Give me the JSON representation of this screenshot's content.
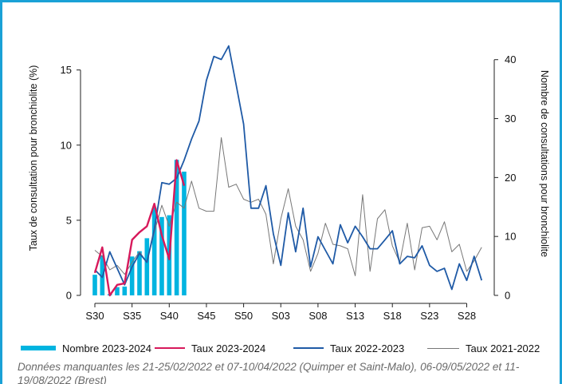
{
  "colors": {
    "frame": "#1aa1d6",
    "bars": "#00b4e0",
    "taux_2023_2024": "#d7195b",
    "taux_2022_2023": "#1f5aa6",
    "taux_2021_2022": "#777777",
    "axis": "#222222"
  },
  "chart_data": {
    "type": "bar",
    "ylabel_left": "Taux de consultation pour bronchiolite (%)",
    "ylabel_right": "Nombre de consultations pour bronchiolite",
    "ylim_left": [
      0,
      17
    ],
    "ylim_right": [
      0,
      43.35
    ],
    "yticks_left": [
      0,
      5,
      10,
      15
    ],
    "yticks_right": [
      0,
      10,
      20,
      30,
      40
    ],
    "x_tick_labels": [
      "S30",
      "S35",
      "S40",
      "S45",
      "S50",
      "S03",
      "S08",
      "S13",
      "S18",
      "S23",
      "S28"
    ],
    "x_tick_index": [
      0,
      5,
      10,
      15,
      20,
      25,
      30,
      35,
      40,
      45,
      50
    ],
    "bars": {
      "name": "Nombre 2023-2024",
      "axis": "right",
      "x_index": [
        0,
        1,
        2,
        3,
        4,
        5,
        6,
        7,
        8,
        9,
        10,
        11,
        12
      ],
      "values": [
        3.5,
        6.8,
        0.2,
        1.4,
        1.5,
        6.6,
        7.5,
        9.7,
        14.9,
        13.3,
        13.6,
        23.0,
        21.0
      ]
    },
    "series": [
      {
        "name": "Taux 2023-2024",
        "axis": "left",
        "x_index": [
          0,
          1,
          2,
          3,
          4,
          5,
          6,
          7,
          8,
          9,
          10,
          11,
          12
        ],
        "values": [
          1.5,
          3.2,
          0.0,
          0.7,
          0.8,
          3.7,
          4.2,
          4.6,
          6.1,
          4.0,
          2.4,
          9.0,
          7.3
        ]
      },
      {
        "name": "Taux 2022-2023",
        "axis": "left",
        "x_index": [
          0,
          1,
          2,
          3,
          4,
          5,
          6,
          7,
          8,
          9,
          10,
          11,
          12,
          13,
          14,
          15,
          16,
          17,
          18,
          19,
          20,
          21,
          22,
          23,
          24,
          25,
          26,
          27,
          28,
          29,
          30,
          31,
          32,
          33,
          34,
          35,
          36,
          37,
          38,
          39,
          40,
          41,
          42,
          43,
          44,
          45,
          46,
          47,
          48,
          49,
          50,
          51,
          52
        ],
        "values": [
          1.7,
          1.2,
          2.9,
          1.8,
          0.7,
          1.9,
          2.8,
          2.2,
          4.4,
          7.5,
          7.4,
          7.8,
          9.0,
          10.4,
          11.6,
          14.3,
          15.9,
          15.7,
          16.6,
          14.0,
          11.4,
          5.8,
          5.8,
          7.3,
          4.1,
          2.0,
          5.5,
          2.9,
          5.8,
          1.9,
          3.9,
          3.0,
          2.1,
          4.7,
          3.5,
          4.6,
          3.9,
          3.1,
          3.1,
          3.7,
          4.3,
          2.1,
          2.6,
          2.5,
          3.3,
          2.0,
          1.6,
          1.8,
          0.4,
          2.1,
          1.0,
          2.6,
          1.0
        ]
      },
      {
        "name": "Taux 2021-2022",
        "axis": "left",
        "x_index": [
          0,
          1,
          2,
          3,
          4,
          5,
          6,
          7,
          8,
          9,
          10,
          11,
          12,
          13,
          14,
          15,
          16,
          17,
          18,
          19,
          20,
          21,
          22,
          23,
          24,
          25,
          26,
          27,
          28,
          29,
          30,
          31,
          32,
          33,
          34,
          35,
          36,
          37,
          38,
          39,
          40,
          41,
          42,
          43,
          44,
          45,
          46,
          47,
          48,
          49,
          50,
          51,
          52
        ],
        "values": [
          3.0,
          2.6,
          1.7,
          2.0,
          1.4,
          2.2,
          2.9,
          2.2,
          4.2,
          6.0,
          4.6,
          6.2,
          5.8,
          7.6,
          5.8,
          5.6,
          5.6,
          10.5,
          7.2,
          7.4,
          6.4,
          6.2,
          6.4,
          5.4,
          2.1,
          5.1,
          7.1,
          4.6,
          3.7,
          1.6,
          2.8,
          4.8,
          3.4,
          3.3,
          3.1,
          1.3,
          6.7,
          1.6,
          5.1,
          5.7,
          3.3,
          2.2,
          4.8,
          1.7,
          4.5,
          4.6,
          3.7,
          4.9,
          2.9,
          3.4,
          1.6,
          2.3,
          3.2
        ]
      }
    ]
  },
  "legend": {
    "bars": "Nombre 2023-2024",
    "taux_2023_2024": "Taux 2023-2024",
    "taux_2022_2023": "Taux 2022-2023",
    "taux_2021_2022": "Taux 2021-2022"
  },
  "note": "Données manquantes les 21-25/02/2022 et 07-10/04/2022 (Quimper et Saint-Malo), 06-09/05/2022 et 11-19/08/2022 (Brest)"
}
